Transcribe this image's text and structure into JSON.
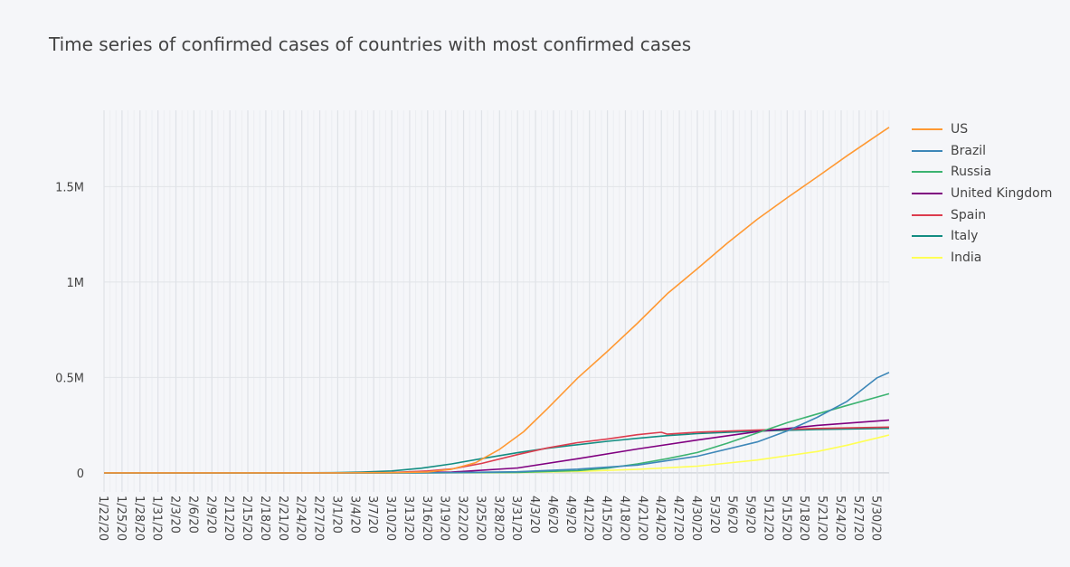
{
  "chart_data": {
    "type": "line",
    "title": "Time series of confirmed cases of countries with most confirmed cases",
    "xlabel": "",
    "ylabel": "",
    "x_range": [
      "1/22/20",
      "6/1/20"
    ],
    "x_tick_labels": [
      "1/22/20",
      "1/25/20",
      "1/28/20",
      "1/31/20",
      "2/3/20",
      "2/6/20",
      "2/9/20",
      "2/12/20",
      "2/15/20",
      "2/18/20",
      "2/21/20",
      "2/24/20",
      "2/27/20",
      "3/1/20",
      "3/4/20",
      "3/7/20",
      "3/10/20",
      "3/13/20",
      "3/16/20",
      "3/19/20",
      "3/22/20",
      "3/25/20",
      "3/28/20",
      "3/31/20",
      "4/3/20",
      "4/6/20",
      "4/9/20",
      "4/12/20",
      "4/15/20",
      "4/18/20",
      "4/21/20",
      "4/24/20",
      "4/27/20",
      "4/30/20",
      "5/3/20",
      "5/6/20",
      "5/9/20",
      "5/12/20",
      "5/15/20",
      "5/18/20",
      "5/21/20",
      "5/24/20",
      "5/27/20",
      "5/30/20"
    ],
    "y_ticks": [
      0,
      500000,
      1000000,
      1500000
    ],
    "y_tick_labels": [
      "0",
      "0.5M",
      "1M",
      "1.5M"
    ],
    "ylim": [
      -100000,
      1900000
    ],
    "grid": true,
    "legend_position": "right",
    "series": [
      {
        "name": "US",
        "color": "#ff9933",
        "points": [
          [
            "1/22/20",
            1
          ],
          [
            "3/1/20",
            75
          ],
          [
            "3/10/20",
            1000
          ],
          [
            "3/16/20",
            4600
          ],
          [
            "3/20/20",
            19000
          ],
          [
            "3/24/20",
            53000
          ],
          [
            "3/28/20",
            123000
          ],
          [
            "4/1/20",
            215000
          ],
          [
            "4/5/20",
            337000
          ],
          [
            "4/10/20",
            496000
          ],
          [
            "4/15/20",
            637000
          ],
          [
            "4/20/20",
            784000
          ],
          [
            "4/25/20",
            939000
          ],
          [
            "4/30/20",
            1070000
          ],
          [
            "5/5/20",
            1204000
          ],
          [
            "5/10/20",
            1329000
          ],
          [
            "5/15/20",
            1442000
          ],
          [
            "5/20/20",
            1551000
          ],
          [
            "5/25/20",
            1662000
          ],
          [
            "5/31/20",
            1790000
          ],
          [
            "6/1/20",
            1811000
          ]
        ]
      },
      {
        "name": "Brazil",
        "color": "#3d87b8",
        "points": [
          [
            "1/22/20",
            0
          ],
          [
            "3/10/20",
            30
          ],
          [
            "3/20/20",
            900
          ],
          [
            "3/31/20",
            5700
          ],
          [
            "4/10/20",
            19600
          ],
          [
            "4/20/20",
            40700
          ],
          [
            "4/30/20",
            87000
          ],
          [
            "5/10/20",
            162000
          ],
          [
            "5/15/20",
            220000
          ],
          [
            "5/20/20",
            291000
          ],
          [
            "5/25/20",
            375000
          ],
          [
            "5/30/20",
            498000
          ],
          [
            "6/1/20",
            526000
          ]
        ]
      },
      {
        "name": "Russia",
        "color": "#3cb371",
        "points": [
          [
            "1/22/20",
            0
          ],
          [
            "3/15/20",
            60
          ],
          [
            "3/31/20",
            2300
          ],
          [
            "4/10/20",
            11900
          ],
          [
            "4/15/20",
            24500
          ],
          [
            "4/20/20",
            47100
          ],
          [
            "4/25/20",
            74600
          ],
          [
            "4/30/20",
            106500
          ],
          [
            "5/5/20",
            155400
          ],
          [
            "5/10/20",
            209700
          ],
          [
            "5/15/20",
            262800
          ],
          [
            "5/20/20",
            308700
          ],
          [
            "5/25/20",
            353400
          ],
          [
            "6/1/20",
            414900
          ]
        ]
      },
      {
        "name": "United Kingdom",
        "color": "#800080",
        "points": [
          [
            "1/22/20",
            0
          ],
          [
            "3/10/20",
            380
          ],
          [
            "3/20/20",
            4000
          ],
          [
            "3/31/20",
            25500
          ],
          [
            "4/10/20",
            73800
          ],
          [
            "4/20/20",
            125000
          ],
          [
            "4/30/20",
            172000
          ],
          [
            "5/10/20",
            216000
          ],
          [
            "5/20/20",
            249000
          ],
          [
            "5/31/20",
            274000
          ],
          [
            "6/1/20",
            277000
          ]
        ]
      },
      {
        "name": "Spain",
        "color": "#dc3c4e",
        "points": [
          [
            "1/22/20",
            0
          ],
          [
            "3/1/20",
            84
          ],
          [
            "3/10/20",
            1700
          ],
          [
            "3/16/20",
            9900
          ],
          [
            "3/20/20",
            20400
          ],
          [
            "3/25/20",
            49500
          ],
          [
            "3/31/20",
            95900
          ],
          [
            "4/5/20",
            130800
          ],
          [
            "4/10/20",
            158300
          ],
          [
            "4/15/20",
            177600
          ],
          [
            "4/20/20",
            200200
          ],
          [
            "4/24/20",
            213000
          ],
          [
            "4/25/20",
            202900
          ],
          [
            "4/30/20",
            213400
          ],
          [
            "5/10/20",
            224400
          ],
          [
            "5/20/20",
            232500
          ],
          [
            "6/1/20",
            239600
          ]
        ]
      },
      {
        "name": "Italy",
        "color": "#138d82",
        "points": [
          [
            "1/22/20",
            0
          ],
          [
            "2/21/20",
            20
          ],
          [
            "2/29/20",
            1100
          ],
          [
            "3/5/20",
            3900
          ],
          [
            "3/10/20",
            10100
          ],
          [
            "3/15/20",
            24700
          ],
          [
            "3/20/20",
            47000
          ],
          [
            "3/25/20",
            74400
          ],
          [
            "3/31/20",
            105800
          ],
          [
            "4/5/20",
            128900
          ],
          [
            "4/10/20",
            147600
          ],
          [
            "4/15/20",
            165200
          ],
          [
            "4/20/20",
            181200
          ],
          [
            "4/25/20",
            195400
          ],
          [
            "4/30/20",
            205500
          ],
          [
            "5/10/20",
            219100
          ],
          [
            "5/20/20",
            227400
          ],
          [
            "6/1/20",
            233200
          ]
        ]
      },
      {
        "name": "India",
        "color": "#ffff55",
        "points": [
          [
            "1/22/20",
            0
          ],
          [
            "3/20/20",
            250
          ],
          [
            "3/31/20",
            1400
          ],
          [
            "4/10/20",
            7600
          ],
          [
            "4/20/20",
            18500
          ],
          [
            "4/30/20",
            34900
          ],
          [
            "5/10/20",
            67200
          ],
          [
            "5/20/20",
            112000
          ],
          [
            "5/25/20",
            144900
          ],
          [
            "5/31/20",
            190600
          ],
          [
            "6/1/20",
            198700
          ]
        ]
      }
    ]
  }
}
